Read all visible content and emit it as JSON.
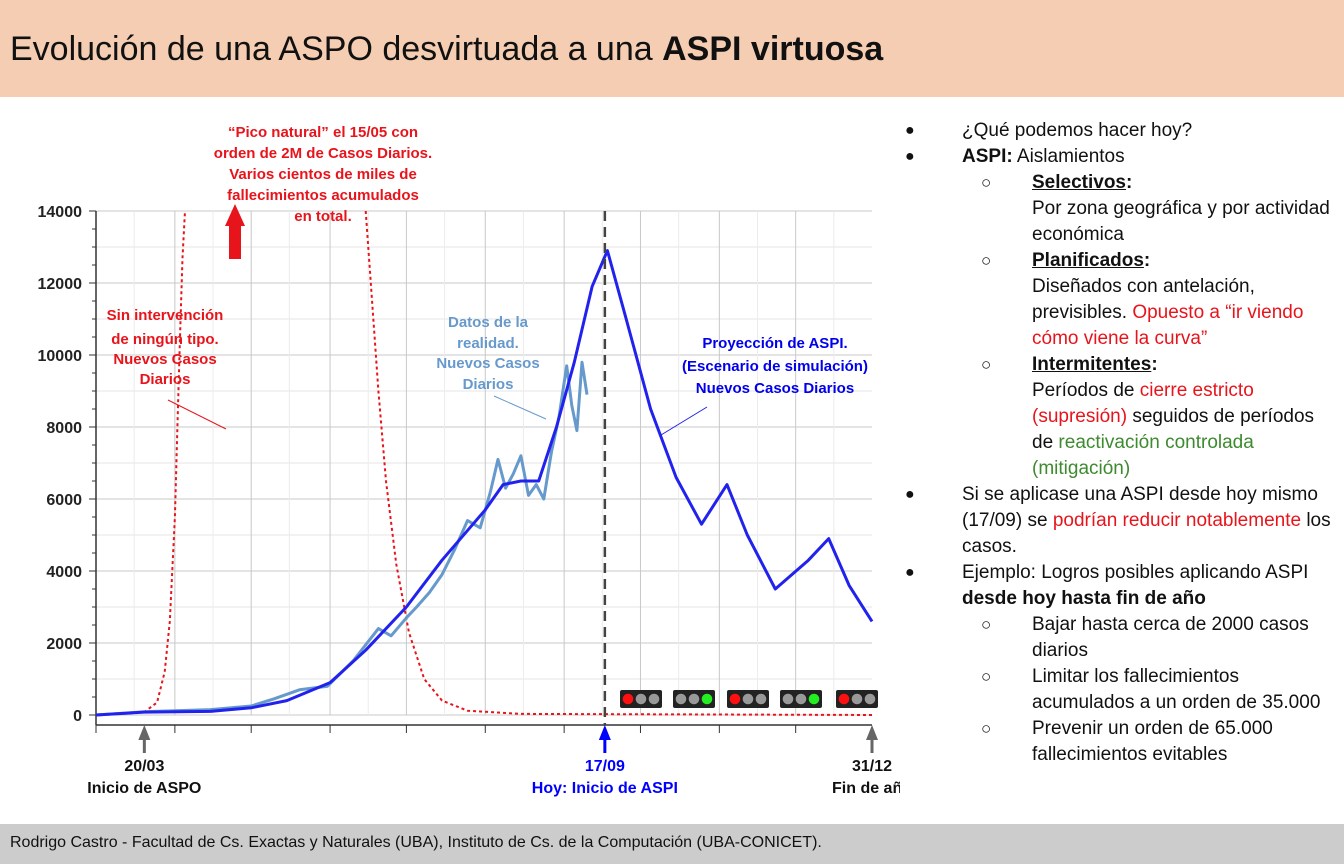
{
  "header": {
    "title_regular": "Evolución de una ASPO desvirtuada a una",
    "title_bold": "ASPI virtuosa"
  },
  "footer": {
    "text": "Rodrigo Castro - Facultad de Cs. Exactas y Naturales (UBA), Instituto de Cs. de la Computación (UBA-CONICET)."
  },
  "colors": {
    "header_bg": "#f4cdb2",
    "footer_bg": "#cccccc",
    "no_intervention": "#e8141b",
    "reality": "#6699cc",
    "aspi_projection": "#2222ee",
    "today_marker": "#0000ff",
    "mitigation_green": "#3d8a2f"
  },
  "chart_data": {
    "type": "line",
    "xlabel": "",
    "ylabel": "",
    "ylim": [
      0,
      14000
    ],
    "yticks": [
      0,
      2000,
      4000,
      6000,
      8000,
      10000,
      12000,
      14000
    ],
    "grid": true,
    "x_markers": [
      {
        "date": "20/03",
        "label": "Inicio de ASPO",
        "color": "#111111"
      },
      {
        "date": "17/09",
        "label": "Hoy: Inicio de ASPI",
        "color": "#0000ff"
      },
      {
        "date": "31/12",
        "label": "Fin de año",
        "color": "#111111"
      }
    ],
    "series": [
      {
        "key": "no_intervention",
        "style": "dotted",
        "points": [
          [
            "2020-03-01",
            0
          ],
          [
            "2020-03-20",
            80
          ],
          [
            "2020-03-25",
            350
          ],
          [
            "2020-03-28",
            1200
          ],
          [
            "2020-03-30",
            2600
          ],
          [
            "2020-04-01",
            5500
          ],
          [
            "2020-04-02",
            8000
          ],
          [
            "2020-04-03",
            10500
          ],
          [
            "2020-04-04",
            12700
          ],
          [
            "2020-04-05",
            14000
          ]
        ]
      },
      {
        "key": "no_intervention_decline",
        "style": "dotted",
        "points": [
          [
            "2020-06-15",
            14000
          ],
          [
            "2020-06-17",
            12000
          ],
          [
            "2020-06-20",
            9000
          ],
          [
            "2020-06-23",
            6500
          ],
          [
            "2020-06-27",
            4200
          ],
          [
            "2020-07-02",
            2300
          ],
          [
            "2020-07-08",
            1000
          ],
          [
            "2020-07-15",
            400
          ],
          [
            "2020-07-25",
            120
          ],
          [
            "2020-08-15",
            30
          ],
          [
            "2020-12-31",
            0
          ]
        ]
      },
      {
        "key": "reality",
        "style": "solid",
        "points": [
          [
            "2020-03-01",
            0
          ],
          [
            "2020-03-20",
            90
          ],
          [
            "2020-04-01",
            120
          ],
          [
            "2020-04-15",
            150
          ],
          [
            "2020-05-01",
            250
          ],
          [
            "2020-05-10",
            450
          ],
          [
            "2020-05-20",
            700
          ],
          [
            "2020-05-31",
            800
          ],
          [
            "2020-06-10",
            1500
          ],
          [
            "2020-06-20",
            2400
          ],
          [
            "2020-06-25",
            2200
          ],
          [
            "2020-07-01",
            2700
          ],
          [
            "2020-07-05",
            3000
          ],
          [
            "2020-07-10",
            3400
          ],
          [
            "2020-07-15",
            3900
          ],
          [
            "2020-07-20",
            4600
          ],
          [
            "2020-07-25",
            5400
          ],
          [
            "2020-07-30",
            5200
          ],
          [
            "2020-08-03",
            6200
          ],
          [
            "2020-08-06",
            7100
          ],
          [
            "2020-08-09",
            6300
          ],
          [
            "2020-08-12",
            6700
          ],
          [
            "2020-08-15",
            7200
          ],
          [
            "2020-08-18",
            6100
          ],
          [
            "2020-08-21",
            6400
          ],
          [
            "2020-08-24",
            6000
          ],
          [
            "2020-08-27",
            7300
          ],
          [
            "2020-08-30",
            8300
          ],
          [
            "2020-09-02",
            9700
          ],
          [
            "2020-09-04",
            8600
          ],
          [
            "2020-09-06",
            7900
          ],
          [
            "2020-09-08",
            9800
          ],
          [
            "2020-09-10",
            8900
          ]
        ]
      },
      {
        "key": "aspi_projection",
        "style": "solid",
        "points": [
          [
            "2020-03-01",
            0
          ],
          [
            "2020-03-20",
            80
          ],
          [
            "2020-04-15",
            100
          ],
          [
            "2020-05-01",
            200
          ],
          [
            "2020-05-15",
            400
          ],
          [
            "2020-06-01",
            900
          ],
          [
            "2020-06-15",
            1800
          ],
          [
            "2020-07-01",
            3000
          ],
          [
            "2020-07-15",
            4300
          ],
          [
            "2020-08-01",
            5700
          ],
          [
            "2020-08-08",
            6400
          ],
          [
            "2020-08-15",
            6500
          ],
          [
            "2020-08-22",
            6500
          ],
          [
            "2020-08-29",
            8000
          ],
          [
            "2020-09-05",
            9800
          ],
          [
            "2020-09-12",
            11900
          ],
          [
            "2020-09-18",
            12900
          ],
          [
            "2020-09-25",
            11100
          ],
          [
            "2020-10-05",
            8500
          ],
          [
            "2020-10-15",
            6600
          ],
          [
            "2020-10-25",
            5300
          ],
          [
            "2020-11-04",
            6400
          ],
          [
            "2020-11-12",
            5000
          ],
          [
            "2020-11-23",
            3500
          ],
          [
            "2020-12-06",
            4300
          ],
          [
            "2020-12-14",
            4900
          ],
          [
            "2020-12-22",
            3600
          ],
          [
            "2020-12-31",
            2600
          ]
        ]
      }
    ],
    "annotations": {
      "peak_line1": "“Pico natural” el 15/05 con",
      "peak_line2": "orden de 2M de Casos Diarios.",
      "peak_line3": "Varios cientos de miles de",
      "peak_line4": "fallecimientos acumulados",
      "peak_line5": "en total.",
      "noint_line1": "Sin intervención",
      "noint_line2": "de ningún tipo.",
      "noint_line3": "Nuevos Casos",
      "noint_line4": "Diarios",
      "real_line1": "Datos de la",
      "real_line2": "realidad.",
      "real_line3": "Nuevos Casos",
      "real_line4": "Diarios",
      "aspi_line1": "Proyección de ASPI.",
      "aspi_line2": "(Escenario de simulación)",
      "aspi_line3": "Nuevos Casos Diarios"
    },
    "traffic_lights": [
      {
        "lit": "red"
      },
      {
        "lit": "green"
      },
      {
        "lit": "red"
      },
      {
        "lit": "green"
      },
      {
        "lit": "red"
      }
    ]
  },
  "bullets": {
    "b1": "¿Qué podemos hacer hoy?",
    "b2_bold": "ASPI:",
    "b2_rest": " Aislamientos",
    "s1_title": "Selectivos",
    "s1_colon": ":",
    "s1_text": "Por zona geográfica y por actividad económica",
    "s2_title": "Planificados",
    "s2_colon": ":",
    "s2_text": "Diseñados con antelación, previsibles. ",
    "s2_red": "Opuesto a “ir viendo cómo viene la curva”",
    "s3_title": "Intermitentes",
    "s3_colon": ":",
    "s3_text1": "Períodos de ",
    "s3_red": "cierre estricto (supresión)",
    "s3_text2": " seguidos de períodos de ",
    "s3_green": "reactivación controlada (mitigación)",
    "b3_text1": "Si se aplicase una ASPI desde hoy mismo (17/09) se ",
    "b3_red": "podrían reducir notablemente",
    "b3_text2": " los casos.",
    "b4_text1": "Ejemplo: Logros posibles aplicando ASPI ",
    "b4_bold": "desde hoy hasta fin de año",
    "s4": "Bajar hasta cerca de 2000 casos diarios",
    "s5": "Limitar los fallecimientos acumulados a un orden de 35.000",
    "s6": "Prevenir un orden de 65.000 fallecimientos evitables"
  }
}
